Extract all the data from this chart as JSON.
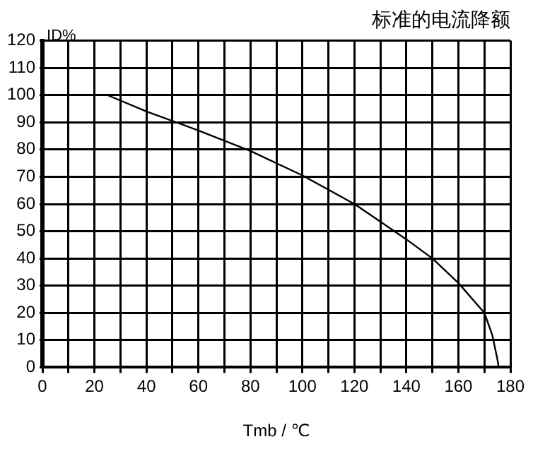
{
  "chart_data": {
    "type": "line",
    "title": "标准的电流降额",
    "xlabel": "Tmb / ℃",
    "ylabel": "ID%",
    "x": [
      0,
      25,
      40,
      60,
      80,
      100,
      120,
      130,
      140,
      150,
      160,
      170,
      173,
      175,
      175.5
    ],
    "series": [
      {
        "color": "#000000",
        "values": [
          100,
          100,
          94,
          87,
          79.5,
          70.5,
          60,
          53.5,
          47,
          40,
          31,
          20,
          12,
          3,
          0
        ]
      }
    ],
    "xlim": [
      0,
      180
    ],
    "xticks": [
      0,
      {
        "value": 10,
        "label": null
      },
      20,
      {
        "value": 30,
        "label": null
      },
      40,
      {
        "value": 50,
        "label": null
      },
      60,
      {
        "value": 70,
        "label": null
      },
      80,
      {
        "value": 90,
        "label": null
      },
      100,
      {
        "value": 110,
        "label": null
      },
      120,
      {
        "value": 130,
        "label": null
      },
      140,
      {
        "value": 150,
        "label": null
      },
      160,
      {
        "value": 170,
        "label": null
      },
      180
    ],
    "ylim": [
      0,
      120
    ],
    "yticks": [
      0,
      10,
      20,
      30,
      40,
      50,
      60,
      70,
      80,
      90,
      100,
      110,
      120
    ],
    "grid": true,
    "legend": false,
    "marker": "none",
    "line_style": "solid"
  }
}
